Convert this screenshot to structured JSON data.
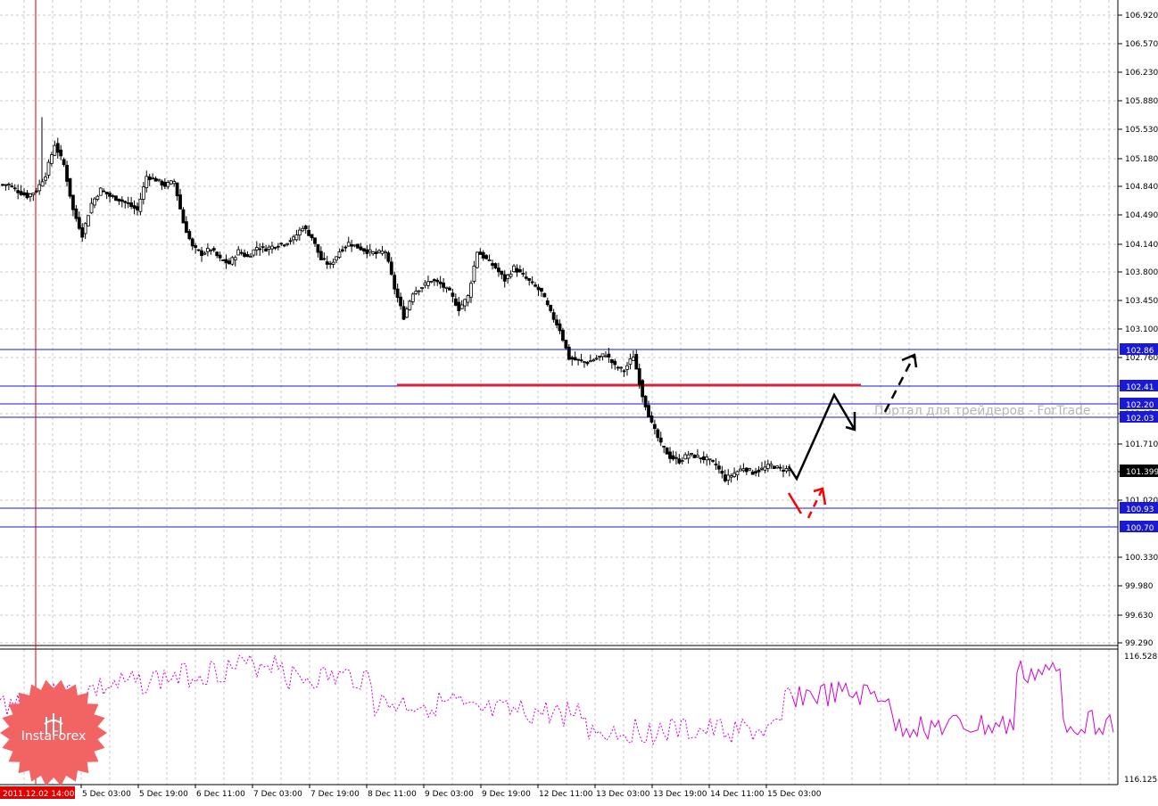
{
  "chart_data": {
    "type": "candlestick",
    "price_axis": {
      "ticks": [
        "106.920",
        "106.570",
        "106.230",
        "105.880",
        "105.530",
        "105.180",
        "104.840",
        "104.490",
        "104.140",
        "103.800",
        "103.450",
        "103.100",
        "102.760",
        "102.410",
        "102.070",
        "101.710",
        "101.370",
        "101.020",
        "100.330",
        "99.980",
        "99.630",
        "99.290"
      ],
      "ylim": [
        99.29,
        106.92
      ]
    },
    "indicator_axis": {
      "ticks": [
        "116.528",
        "116.125"
      ]
    },
    "time_axis": {
      "labels": [
        "2011.12.02 14:00",
        "5 Dec 03:00",
        "5 Dec 19:00",
        "6 Dec 11:00",
        "7 Dec 03:00",
        "7 Dec 19:00",
        "8 Dec 11:00",
        "9 Dec 03:00",
        "9 Dec 19:00",
        "12 Dec 11:00",
        "13 Dec 03:00",
        "13 Dec 19:00",
        "14 Dec 11:00",
        "15 Dec 03:00"
      ]
    },
    "current_price": "101.399",
    "levels": [
      {
        "value": 102.86,
        "label": "102.86",
        "color": "#1a1ad6"
      },
      {
        "value": 102.41,
        "label": "102.41",
        "color": "#1a1ad6"
      },
      {
        "value": 102.2,
        "label": "102.20",
        "color": "#1a1ad6"
      },
      {
        "value": 102.03,
        "label": "102.03",
        "color": "#1a1ad6"
      },
      {
        "value": 100.93,
        "label": "100.93",
        "color": "#1a1ad6"
      },
      {
        "value": 100.7,
        "label": "100.70",
        "color": "#1a1ad6"
      }
    ],
    "resistance_segment": {
      "value": 102.41,
      "color": "#d2233c"
    },
    "watermark": "Портал для трейдеров - ForTrade",
    "brand": "InstaForex",
    "colors": {
      "candle": "#000000",
      "grid": "#c8c8c8",
      "level": "#1a1ad6",
      "oscillator": "#d400d4",
      "marker": "#ff0000",
      "badge": "#f26464"
    },
    "candles_close": [
      104.86,
      104.78,
      104.72,
      104.79,
      104.98,
      105.35,
      105.1,
      104.55,
      104.25,
      104.63,
      104.8,
      104.72,
      104.68,
      104.62,
      104.55,
      104.96,
      104.92,
      104.85,
      104.9,
      104.4,
      104.1,
      104.02,
      104.08,
      103.95,
      103.9,
      104.05,
      103.98,
      104.1,
      104.08,
      104.12,
      104.15,
      104.2,
      104.35,
      104.22,
      103.95,
      103.88,
      104.05,
      104.15,
      104.1,
      104.05,
      104.02,
      104.05,
      103.6,
      103.25,
      103.55,
      103.62,
      103.7,
      103.65,
      103.55,
      103.35,
      103.5,
      104.05,
      103.95,
      103.85,
      103.7,
      103.85,
      103.75,
      103.65,
      103.55,
      103.3,
      103.1,
      102.75,
      102.72,
      102.7,
      102.75,
      102.8,
      102.65,
      102.6,
      102.78,
      102.3,
      101.95,
      101.7,
      101.55,
      101.5,
      101.58,
      101.55,
      101.52,
      101.45,
      101.28,
      101.35,
      101.42,
      101.36,
      101.4,
      101.45,
      101.4,
      101.399
    ],
    "forecast_path": [
      [
        101.25,
        101.25
      ],
      [
        102.28,
        101.95
      ]
    ],
    "oscillator_note": "RSI-style overlay; last visible level 116.528 scale"
  }
}
